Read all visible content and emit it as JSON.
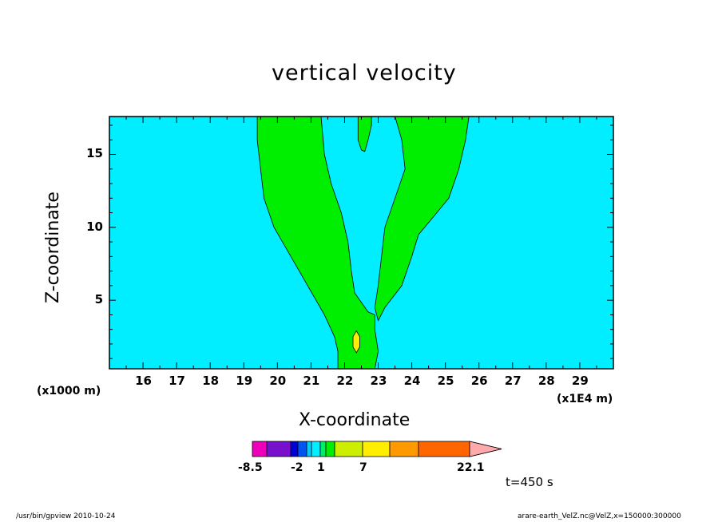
{
  "chart_data": {
    "type": "contour",
    "title": "vertical velocity",
    "xlabel": "X-coordinate",
    "ylabel": "Z-coordinate",
    "x_unit": "(x1E4 m)",
    "y_unit": "(x1000 m)",
    "xlim": [
      15,
      30
    ],
    "ylim": [
      0.3,
      17.6
    ],
    "x_ticks": [
      16,
      17,
      18,
      19,
      20,
      21,
      22,
      23,
      24,
      25,
      26,
      27,
      28,
      29
    ],
    "y_ticks": [
      5,
      10,
      15
    ],
    "background_color": "#00eeff",
    "regions": [
      {
        "name": "left-plume",
        "level_range": [
          1,
          3
        ],
        "color": "#00ee00",
        "outline": [
          [
            19.4,
            17.6
          ],
          [
            21.3,
            17.6
          ],
          [
            21.4,
            15
          ],
          [
            21.6,
            13
          ],
          [
            21.9,
            11
          ],
          [
            22.1,
            9
          ],
          [
            22.2,
            7
          ],
          [
            22.3,
            5.5
          ],
          [
            22.7,
            4.2
          ],
          [
            22.9,
            4.0
          ],
          [
            22.9,
            3.0
          ],
          [
            23.0,
            1.5
          ],
          [
            22.9,
            0.3
          ],
          [
            21.8,
            0.3
          ],
          [
            21.8,
            1.5
          ],
          [
            21.7,
            2.5
          ],
          [
            21.4,
            4
          ],
          [
            20.9,
            6
          ],
          [
            20.4,
            8
          ],
          [
            19.9,
            10
          ],
          [
            19.6,
            12
          ],
          [
            19.5,
            14
          ],
          [
            19.4,
            16
          ]
        ]
      },
      {
        "name": "right-plume",
        "level_range": [
          1,
          3
        ],
        "color": "#00ee00",
        "outline": [
          [
            23.5,
            17.6
          ],
          [
            25.7,
            17.6
          ],
          [
            25.6,
            16
          ],
          [
            25.4,
            14
          ],
          [
            25.1,
            12
          ],
          [
            24.6,
            10.6
          ],
          [
            24.2,
            9.5
          ],
          [
            24.0,
            8
          ],
          [
            23.7,
            6
          ],
          [
            23.2,
            4.5
          ],
          [
            23.0,
            3.6
          ],
          [
            22.9,
            4.5
          ],
          [
            23.0,
            6
          ],
          [
            23.1,
            8
          ],
          [
            23.2,
            10
          ],
          [
            23.5,
            12
          ],
          [
            23.8,
            14
          ],
          [
            23.7,
            16
          ]
        ]
      },
      {
        "name": "top-tongue",
        "level_range": [
          1,
          3
        ],
        "color": "#00ee00",
        "outline": [
          [
            22.4,
            17.6
          ],
          [
            22.8,
            17.6
          ],
          [
            22.8,
            17
          ],
          [
            22.7,
            16
          ],
          [
            22.6,
            15.2
          ],
          [
            22.5,
            15.3
          ],
          [
            22.4,
            16
          ],
          [
            22.4,
            17
          ]
        ]
      },
      {
        "name": "core-maximum",
        "level_range": [
          3,
          5
        ],
        "color": "#ffee00",
        "outline": [
          [
            22.35,
            2.9
          ],
          [
            22.45,
            2.5
          ],
          [
            22.45,
            1.8
          ],
          [
            22.35,
            1.4
          ],
          [
            22.25,
            1.8
          ],
          [
            22.25,
            2.5
          ]
        ]
      }
    ],
    "colorbar": {
      "levels": [
        -8.5,
        -5,
        -3.5,
        -2,
        -1.5,
        -1,
        -0.5,
        0,
        1,
        3,
        5,
        7,
        11,
        14,
        22.1
      ],
      "colors": [
        "#ee00bb",
        "#7711cc",
        "#0000dd",
        "#0055ee",
        "#00ccff",
        "#00eeff",
        "#00ee66",
        "#00ee00",
        "#ccee00",
        "#ffee00",
        "#ff9900",
        "#ff6600",
        "#ff1111",
        "#ff8080",
        "#ffaaaa"
      ],
      "tick_labels": [
        {
          "text": "-8.5",
          "value": -8.5
        },
        {
          "text": "-2",
          "value": -2
        },
        {
          "text": "1",
          "value": 1
        },
        {
          "text": "7",
          "value": 7
        },
        {
          "text": "22.1",
          "value": 22.1
        }
      ]
    },
    "time_label": "t=450 s",
    "footer_left": "/usr/bin/gpview   2010-10-24",
    "footer_right": "arare-earth_VelZ.nc@VelZ,x=150000:300000"
  }
}
